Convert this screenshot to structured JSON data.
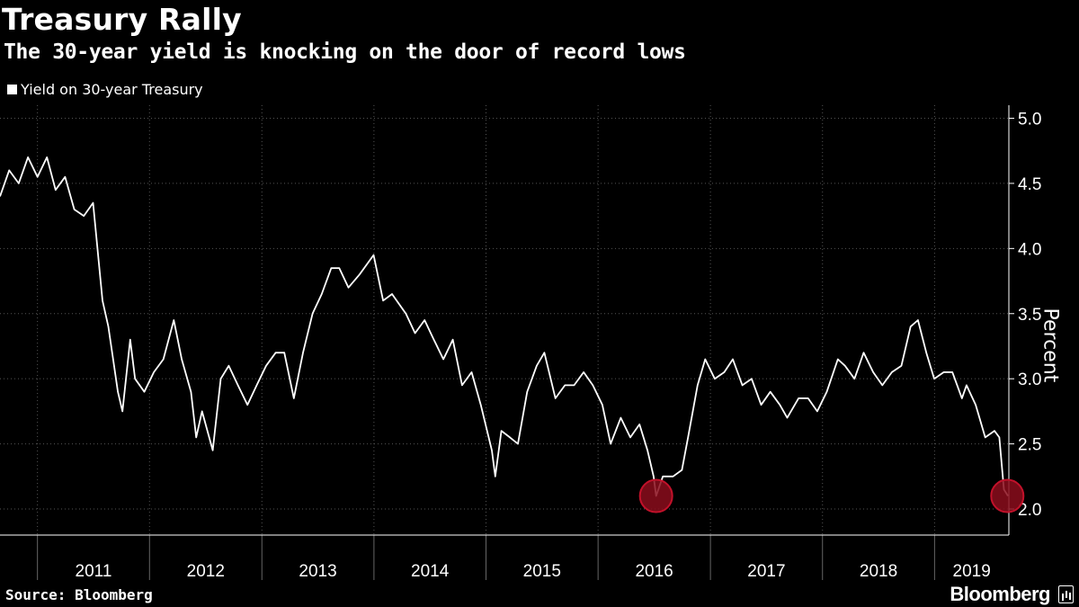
{
  "header": {
    "title": "Treasury Rally",
    "subtitle": "The 30-year yield is knocking on the door of record lows"
  },
  "footer": {
    "source": "Source: Bloomberg",
    "brand": "Bloomberg"
  },
  "colors": {
    "background": "#000000",
    "line": "#ffffff",
    "grid": "#555555",
    "marker_fill": "#8b0d1c",
    "marker_stroke": "#c2112a"
  },
  "chart_data": {
    "type": "line",
    "title": "Treasury Rally",
    "subtitle": "The 30-year yield is knocking on the door of record lows",
    "ylabel": "Percent",
    "xlabel": "",
    "ylim": [
      1.8,
      5.1
    ],
    "xlim": [
      "2010-09-01",
      "2019-08-31"
    ],
    "y_ticks": [
      2.0,
      2.5,
      3.0,
      3.5,
      4.0,
      4.5,
      5.0
    ],
    "y_tick_labels": [
      "2.0",
      "2.5",
      "3.0",
      "3.5",
      "4.0",
      "4.5",
      "5.0"
    ],
    "x_tick_labels": [
      "2011",
      "2012",
      "2013",
      "2014",
      "2015",
      "2016",
      "2017",
      "2018",
      "2019"
    ],
    "grid": true,
    "legend_position": "top-left",
    "series": [
      {
        "name": "Yield on 30-year Treasury",
        "points": [
          [
            "2010-09-01",
            4.4
          ],
          [
            "2010-10-01",
            4.6
          ],
          [
            "2010-11-01",
            4.5
          ],
          [
            "2010-12-01",
            4.7
          ],
          [
            "2011-01-01",
            4.55
          ],
          [
            "2011-02-01",
            4.7
          ],
          [
            "2011-03-01",
            4.45
          ],
          [
            "2011-04-01",
            4.55
          ],
          [
            "2011-05-01",
            4.3
          ],
          [
            "2011-06-01",
            4.25
          ],
          [
            "2011-07-01",
            4.35
          ],
          [
            "2011-08-01",
            3.6
          ],
          [
            "2011-08-20",
            3.4
          ],
          [
            "2011-09-20",
            2.9
          ],
          [
            "2011-10-05",
            2.75
          ],
          [
            "2011-10-30",
            3.3
          ],
          [
            "2011-11-15",
            3.0
          ],
          [
            "2011-12-15",
            2.9
          ],
          [
            "2012-01-15",
            3.05
          ],
          [
            "2012-02-15",
            3.15
          ],
          [
            "2012-03-20",
            3.45
          ],
          [
            "2012-04-15",
            3.15
          ],
          [
            "2012-05-15",
            2.9
          ],
          [
            "2012-06-01",
            2.55
          ],
          [
            "2012-06-20",
            2.75
          ],
          [
            "2012-07-25",
            2.45
          ],
          [
            "2012-08-20",
            3.0
          ],
          [
            "2012-09-15",
            3.1
          ],
          [
            "2012-10-15",
            2.95
          ],
          [
            "2012-11-15",
            2.8
          ],
          [
            "2012-12-15",
            2.95
          ],
          [
            "2013-01-15",
            3.1
          ],
          [
            "2013-02-15",
            3.2
          ],
          [
            "2013-03-15",
            3.2
          ],
          [
            "2013-04-15",
            2.85
          ],
          [
            "2013-05-15",
            3.2
          ],
          [
            "2013-06-15",
            3.5
          ],
          [
            "2013-07-15",
            3.65
          ],
          [
            "2013-08-15",
            3.85
          ],
          [
            "2013-09-10",
            3.85
          ],
          [
            "2013-10-10",
            3.7
          ],
          [
            "2013-11-15",
            3.8
          ],
          [
            "2013-12-31",
            3.95
          ],
          [
            "2014-01-31",
            3.6
          ],
          [
            "2014-03-01",
            3.65
          ],
          [
            "2014-04-15",
            3.5
          ],
          [
            "2014-05-15",
            3.35
          ],
          [
            "2014-06-15",
            3.45
          ],
          [
            "2014-07-15",
            3.3
          ],
          [
            "2014-08-15",
            3.15
          ],
          [
            "2014-09-15",
            3.3
          ],
          [
            "2014-10-15",
            2.95
          ],
          [
            "2014-11-15",
            3.05
          ],
          [
            "2014-12-15",
            2.8
          ],
          [
            "2015-01-20",
            2.45
          ],
          [
            "2015-01-31",
            2.25
          ],
          [
            "2015-02-20",
            2.6
          ],
          [
            "2015-03-20",
            2.55
          ],
          [
            "2015-04-15",
            2.5
          ],
          [
            "2015-05-15",
            2.9
          ],
          [
            "2015-06-15",
            3.1
          ],
          [
            "2015-07-10",
            3.2
          ],
          [
            "2015-08-15",
            2.85
          ],
          [
            "2015-09-15",
            2.95
          ],
          [
            "2015-10-15",
            2.95
          ],
          [
            "2015-11-15",
            3.05
          ],
          [
            "2015-12-15",
            2.95
          ],
          [
            "2016-01-15",
            2.8
          ],
          [
            "2016-02-11",
            2.5
          ],
          [
            "2016-03-15",
            2.7
          ],
          [
            "2016-04-15",
            2.55
          ],
          [
            "2016-05-15",
            2.65
          ],
          [
            "2016-06-10",
            2.45
          ],
          [
            "2016-06-30",
            2.25
          ],
          [
            "2016-07-08",
            2.1
          ],
          [
            "2016-07-30",
            2.25
          ],
          [
            "2016-09-01",
            2.25
          ],
          [
            "2016-09-30",
            2.3
          ],
          [
            "2016-10-20",
            2.55
          ],
          [
            "2016-11-20",
            2.95
          ],
          [
            "2016-12-15",
            3.15
          ],
          [
            "2017-01-15",
            3.0
          ],
          [
            "2017-02-15",
            3.05
          ],
          [
            "2017-03-15",
            3.15
          ],
          [
            "2017-04-15",
            2.95
          ],
          [
            "2017-05-15",
            3.0
          ],
          [
            "2017-06-15",
            2.8
          ],
          [
            "2017-07-15",
            2.9
          ],
          [
            "2017-08-15",
            2.8
          ],
          [
            "2017-09-08",
            2.7
          ],
          [
            "2017-10-15",
            2.85
          ],
          [
            "2017-11-15",
            2.85
          ],
          [
            "2017-12-15",
            2.75
          ],
          [
            "2018-01-15",
            2.9
          ],
          [
            "2018-02-20",
            3.15
          ],
          [
            "2018-03-15",
            3.1
          ],
          [
            "2018-04-15",
            3.0
          ],
          [
            "2018-05-15",
            3.2
          ],
          [
            "2018-06-15",
            3.05
          ],
          [
            "2018-07-15",
            2.95
          ],
          [
            "2018-08-15",
            3.05
          ],
          [
            "2018-09-15",
            3.1
          ],
          [
            "2018-10-15",
            3.4
          ],
          [
            "2018-11-08",
            3.45
          ],
          [
            "2018-12-05",
            3.2
          ],
          [
            "2018-12-31",
            3.0
          ],
          [
            "2019-01-31",
            3.05
          ],
          [
            "2019-02-28",
            3.05
          ],
          [
            "2019-03-31",
            2.85
          ],
          [
            "2019-04-15",
            2.95
          ],
          [
            "2019-05-15",
            2.8
          ],
          [
            "2019-06-15",
            2.55
          ],
          [
            "2019-07-15",
            2.6
          ],
          [
            "2019-07-31",
            2.55
          ],
          [
            "2019-08-15",
            2.15
          ],
          [
            "2019-08-28",
            2.1
          ]
        ]
      }
    ],
    "annotations": [
      {
        "type": "circle-marker",
        "x": "2016-07-08",
        "y": 2.1
      },
      {
        "type": "circle-marker",
        "x": "2019-08-26",
        "y": 2.1
      }
    ]
  }
}
